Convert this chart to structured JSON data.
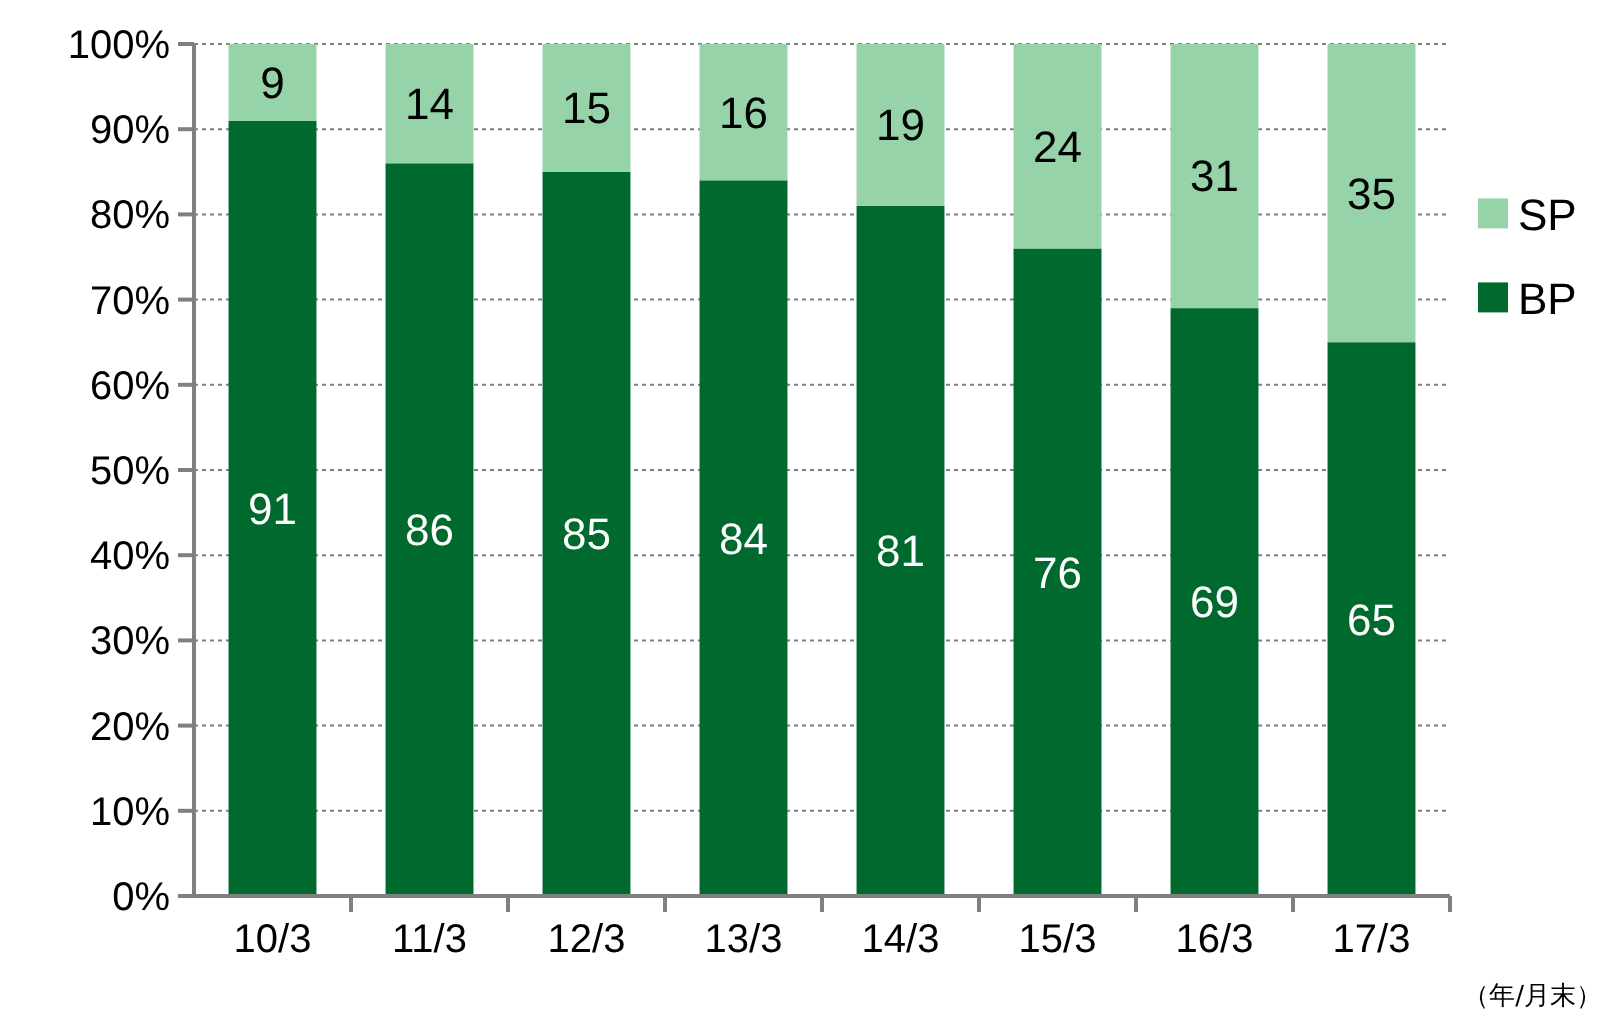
{
  "chart_data": {
    "type": "bar",
    "stacked": true,
    "categories": [
      "10/3",
      "11/3",
      "12/3",
      "13/3",
      "14/3",
      "15/3",
      "16/3",
      "17/3"
    ],
    "series": [
      {
        "name": "BP",
        "color": "#006a2e",
        "values": [
          91,
          86,
          85,
          84,
          81,
          76,
          69,
          65
        ]
      },
      {
        "name": "SP",
        "color": "#96d3a8",
        "values": [
          9,
          14,
          15,
          16,
          19,
          24,
          31,
          35
        ]
      }
    ],
    "ylim": [
      0,
      100
    ],
    "yticks": [
      {
        "value": 0,
        "label": "0%"
      },
      {
        "value": 10,
        "label": "10%"
      },
      {
        "value": 20,
        "label": "20%"
      },
      {
        "value": 30,
        "label": "30%"
      },
      {
        "value": 40,
        "label": "40%"
      },
      {
        "value": 50,
        "label": "50%"
      },
      {
        "value": 60,
        "label": "60%"
      },
      {
        "value": 70,
        "label": "70%"
      },
      {
        "value": 80,
        "label": "80%"
      },
      {
        "value": 90,
        "label": "90%"
      },
      {
        "value": 100,
        "label": "100%"
      }
    ],
    "grid": "y",
    "legend": "right",
    "data_labels": true,
    "annotations": [
      "（年/月末）"
    ]
  }
}
